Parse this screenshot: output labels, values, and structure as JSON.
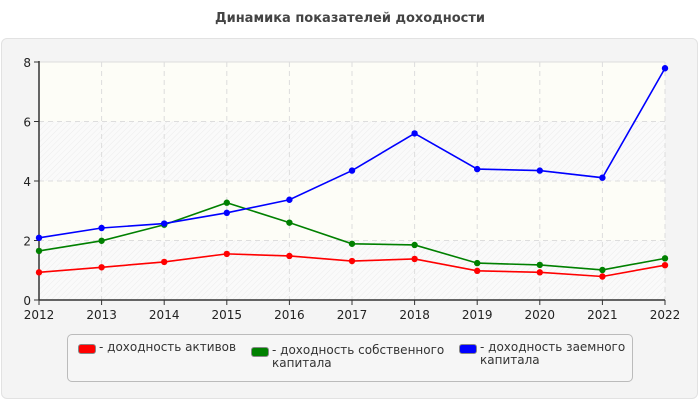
{
  "chart_data": {
    "type": "line",
    "title": "Динамика показателей доходности",
    "x": [
      "2012",
      "2013",
      "2014",
      "2015",
      "2016",
      "2017",
      "2018",
      "2019",
      "2020",
      "2021",
      "2022"
    ],
    "ylim": [
      0,
      8
    ],
    "yticks": [
      "0",
      "2",
      "4",
      "6",
      "8"
    ],
    "grid": true,
    "legend_placement": "bottom",
    "series": [
      {
        "name": "- доходность активов",
        "color": "#ff0000",
        "values": [
          0.93,
          1.1,
          1.28,
          1.55,
          1.48,
          1.31,
          1.38,
          0.98,
          0.93,
          0.79,
          1.17
        ]
      },
      {
        "name": "- доходность собственного капитала",
        "color": "#008000",
        "values": [
          1.65,
          1.99,
          2.53,
          3.27,
          2.6,
          1.89,
          1.85,
          1.24,
          1.18,
          1.01,
          1.4
        ]
      },
      {
        "name": "- доходность заемного капитала",
        "color": "#0000ff",
        "values": [
          2.09,
          2.42,
          2.57,
          2.93,
          3.37,
          4.35,
          5.6,
          4.4,
          4.35,
          4.11,
          7.79
        ]
      }
    ]
  }
}
